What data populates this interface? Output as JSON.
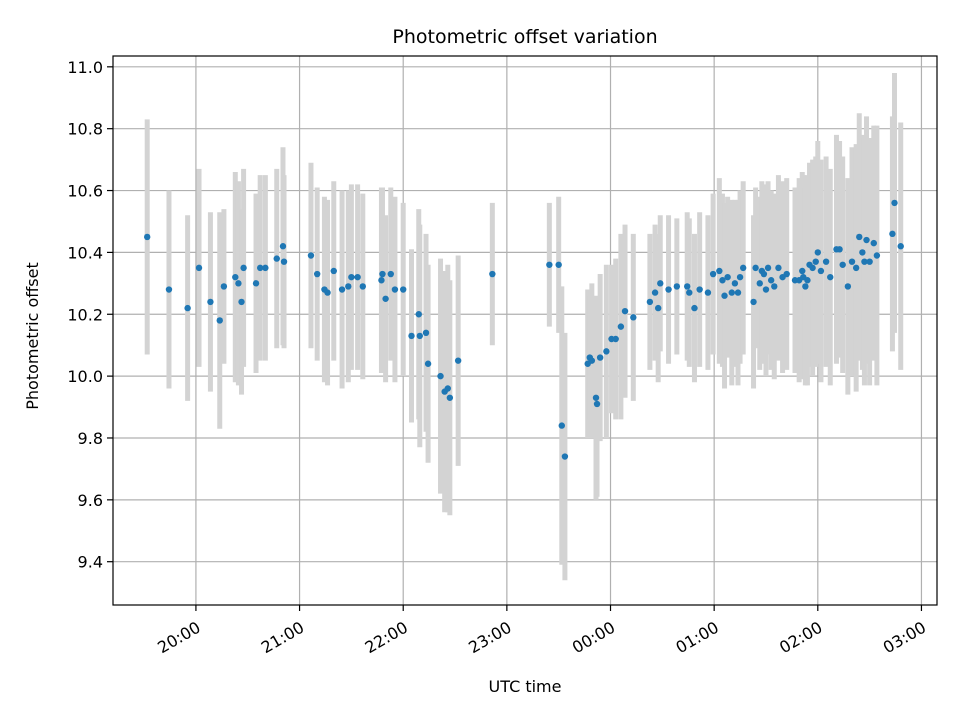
{
  "chart_data": {
    "type": "scatter",
    "title": "Photometric offset variation",
    "xlabel": "UTC time",
    "ylabel": "Photometric offset",
    "x_unit": "hours",
    "x_ticks": [
      {
        "value": 20,
        "label": "20:00"
      },
      {
        "value": 21,
        "label": "21:00"
      },
      {
        "value": 22,
        "label": "22:00"
      },
      {
        "value": 23,
        "label": "23:00"
      },
      {
        "value": 24,
        "label": "00:00"
      },
      {
        "value": 25,
        "label": "01:00"
      },
      {
        "value": 26,
        "label": "02:00"
      },
      {
        "value": 27,
        "label": "03:00"
      }
    ],
    "y_ticks": [
      {
        "value": 9.4,
        "label": "9.4"
      },
      {
        "value": 9.6,
        "label": "9.6"
      },
      {
        "value": 9.8,
        "label": "9.8"
      },
      {
        "value": 10.0,
        "label": "10.0"
      },
      {
        "value": 10.2,
        "label": "10.2"
      },
      {
        "value": 10.4,
        "label": "10.4"
      },
      {
        "value": 10.6,
        "label": "10.6"
      },
      {
        "value": 10.8,
        "label": "10.8"
      },
      {
        "value": 11.0,
        "label": "11.0"
      }
    ],
    "xlim": [
      19.2,
      27.15
    ],
    "ylim": [
      9.26,
      11.035
    ],
    "grid": true,
    "point_color": "#1f77b4",
    "errorbar_color": "#d3d3d3",
    "series": [
      {
        "points": [
          [
            19.53,
            10.45,
            0.38
          ],
          [
            19.74,
            10.28,
            0.32
          ],
          [
            19.92,
            10.22,
            0.3
          ],
          [
            20.03,
            10.35,
            0.32
          ],
          [
            20.14,
            10.24,
            0.29
          ],
          [
            20.23,
            10.18,
            0.35
          ],
          [
            20.27,
            10.29,
            0.25
          ],
          [
            20.38,
            10.32,
            0.34
          ],
          [
            20.41,
            10.3,
            0.33
          ],
          [
            20.44,
            10.24,
            0.3
          ],
          [
            20.46,
            10.35,
            0.32
          ],
          [
            20.58,
            10.3,
            0.29
          ],
          [
            20.62,
            10.35,
            0.3
          ],
          [
            20.67,
            10.35,
            0.3
          ],
          [
            20.78,
            10.38,
            0.29
          ],
          [
            20.84,
            10.42,
            0.32
          ],
          [
            20.85,
            10.37,
            0.28
          ],
          [
            21.11,
            10.39,
            0.3
          ],
          [
            21.17,
            10.33,
            0.28
          ],
          [
            21.24,
            10.28,
            0.3
          ],
          [
            21.27,
            10.27,
            0.3
          ],
          [
            21.33,
            10.34,
            0.29
          ],
          [
            21.41,
            10.28,
            0.32
          ],
          [
            21.47,
            10.29,
            0.31
          ],
          [
            21.5,
            10.32,
            0.3
          ],
          [
            21.56,
            10.32,
            0.3
          ],
          [
            21.61,
            10.29,
            0.3
          ],
          [
            21.79,
            10.31,
            0.3
          ],
          [
            21.8,
            10.33,
            0.28
          ],
          [
            21.83,
            10.25,
            0.27
          ],
          [
            21.88,
            10.33,
            0.28
          ],
          [
            21.92,
            10.28,
            0.3
          ],
          [
            22.0,
            10.28,
            0.28
          ],
          [
            22.08,
            10.13,
            0.28
          ],
          [
            22.15,
            10.2,
            0.34
          ],
          [
            22.16,
            10.13,
            0.36
          ],
          [
            22.22,
            10.14,
            0.32
          ],
          [
            22.24,
            10.04,
            0.32
          ],
          [
            22.36,
            10.0,
            0.38
          ],
          [
            22.4,
            9.95,
            0.39
          ],
          [
            22.43,
            9.96,
            0.4
          ],
          [
            22.45,
            9.93,
            0.38
          ],
          [
            22.53,
            10.05,
            0.34
          ],
          [
            22.86,
            10.33,
            0.23
          ],
          [
            23.41,
            10.36,
            0.2
          ],
          [
            23.5,
            10.36,
            0.22
          ],
          [
            23.53,
            9.84,
            0.45
          ],
          [
            23.56,
            9.74,
            0.4
          ],
          [
            23.78,
            10.04,
            0.24
          ],
          [
            23.8,
            10.06,
            0.2
          ],
          [
            23.82,
            10.05,
            0.25
          ],
          [
            23.86,
            9.93,
            0.33
          ],
          [
            23.87,
            9.91,
            0.3
          ],
          [
            23.9,
            10.06,
            0.27
          ],
          [
            23.96,
            10.08,
            0.28
          ],
          [
            24.01,
            10.12,
            0.24
          ],
          [
            24.05,
            10.12,
            0.26
          ],
          [
            24.1,
            10.16,
            0.3
          ],
          [
            24.14,
            10.21,
            0.28
          ],
          [
            24.22,
            10.19,
            0.27
          ],
          [
            24.38,
            10.24,
            0.22
          ],
          [
            24.43,
            10.27,
            0.22
          ],
          [
            24.46,
            10.22,
            0.24
          ],
          [
            24.48,
            10.3,
            0.22
          ],
          [
            24.56,
            10.28,
            0.24
          ],
          [
            24.64,
            10.29,
            0.22
          ],
          [
            24.74,
            10.29,
            0.24
          ],
          [
            24.76,
            10.27,
            0.24
          ],
          [
            24.81,
            10.22,
            0.24
          ],
          [
            24.86,
            10.28,
            0.25
          ],
          [
            24.94,
            10.27,
            0.25
          ],
          [
            24.99,
            10.33,
            0.26
          ],
          [
            25.05,
            10.34,
            0.3
          ],
          [
            25.08,
            10.31,
            0.28
          ],
          [
            25.1,
            10.26,
            0.3
          ],
          [
            25.13,
            10.32,
            0.26
          ],
          [
            25.17,
            10.27,
            0.3
          ],
          [
            25.2,
            10.3,
            0.27
          ],
          [
            25.23,
            10.27,
            0.3
          ],
          [
            25.25,
            10.32,
            0.28
          ],
          [
            25.28,
            10.35,
            0.28
          ],
          [
            25.38,
            10.24,
            0.28
          ],
          [
            25.4,
            10.35,
            0.26
          ],
          [
            25.44,
            10.3,
            0.28
          ],
          [
            25.46,
            10.34,
            0.29
          ],
          [
            25.48,
            10.33,
            0.29
          ],
          [
            25.5,
            10.28,
            0.28
          ],
          [
            25.52,
            10.35,
            0.28
          ],
          [
            25.55,
            10.31,
            0.29
          ],
          [
            25.58,
            10.29,
            0.3
          ],
          [
            25.62,
            10.35,
            0.3
          ],
          [
            25.66,
            10.32,
            0.31
          ],
          [
            25.7,
            10.33,
            0.31
          ],
          [
            25.78,
            10.31,
            0.3
          ],
          [
            25.82,
            10.31,
            0.33
          ],
          [
            25.85,
            10.34,
            0.32
          ],
          [
            25.86,
            10.32,
            0.33
          ],
          [
            25.88,
            10.29,
            0.32
          ],
          [
            25.9,
            10.31,
            0.34
          ],
          [
            25.92,
            10.36,
            0.33
          ],
          [
            25.95,
            10.35,
            0.35
          ],
          [
            25.98,
            10.37,
            0.34
          ],
          [
            26.0,
            10.4,
            0.36
          ],
          [
            26.03,
            10.34,
            0.36
          ],
          [
            26.08,
            10.37,
            0.34
          ],
          [
            26.12,
            10.32,
            0.35
          ],
          [
            26.18,
            10.41,
            0.37
          ],
          [
            26.21,
            10.41,
            0.35
          ],
          [
            26.24,
            10.36,
            0.35
          ],
          [
            26.29,
            10.29,
            0.35
          ],
          [
            26.33,
            10.37,
            0.37
          ],
          [
            26.37,
            10.35,
            0.4
          ],
          [
            26.4,
            10.45,
            0.4
          ],
          [
            26.43,
            10.4,
            0.38
          ],
          [
            26.45,
            10.37,
            0.4
          ],
          [
            26.47,
            10.44,
            0.4
          ],
          [
            26.5,
            10.37,
            0.4
          ],
          [
            26.54,
            10.43,
            0.38
          ],
          [
            26.57,
            10.39,
            0.42
          ],
          [
            26.72,
            10.46,
            0.38
          ],
          [
            26.74,
            10.56,
            0.42
          ],
          [
            26.8,
            10.42,
            0.4
          ]
        ]
      }
    ]
  }
}
